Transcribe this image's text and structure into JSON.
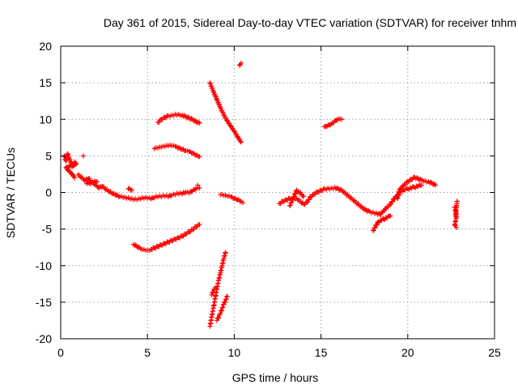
{
  "chart_data": {
    "type": "scatter",
    "title": "Day 361 of 2015, Sidereal Day-to-day VTEC variation (SDTVAR) for receiver tnhm",
    "xlabel": "GPS time / hours",
    "ylabel": "SDTVAR / TECUs",
    "xlim": [
      0,
      25
    ],
    "ylim": [
      -20,
      20
    ],
    "xticks": [
      0,
      5,
      10,
      15,
      20,
      25
    ],
    "yticks": [
      -20,
      -15,
      -10,
      -5,
      0,
      5,
      10,
      15,
      20
    ],
    "grid": true,
    "marker": "+",
    "color": "#ff0000",
    "series": [
      {
        "points": [
          [
            0.2,
            5.0
          ],
          [
            0.3,
            4.3
          ],
          [
            0.4,
            5.3
          ],
          [
            0.5,
            4.6
          ],
          [
            0.6,
            4.1
          ],
          [
            0.7,
            3.6
          ],
          [
            0.8,
            4.2
          ],
          [
            0.9,
            3.9
          ],
          [
            0.3,
            3.4
          ],
          [
            0.5,
            2.9
          ],
          [
            0.7,
            2.4
          ],
          [
            0.8,
            2.0
          ]
        ]
      },
      {
        "points": [
          [
            1.0,
            2.4
          ],
          [
            1.2,
            2.0
          ],
          [
            1.4,
            1.6
          ],
          [
            1.6,
            1.9
          ],
          [
            1.8,
            1.4
          ],
          [
            2.0,
            1.0
          ],
          [
            2.2,
            0.6
          ],
          [
            2.4,
            0.8
          ],
          [
            2.6,
            0.4
          ],
          [
            2.8,
            0.1
          ],
          [
            3.0,
            -0.2
          ],
          [
            3.2,
            -0.4
          ],
          [
            3.4,
            -0.6
          ],
          [
            3.6,
            -0.7
          ],
          [
            3.8,
            -0.8
          ],
          [
            4.0,
            -0.9
          ],
          [
            4.2,
            -1.0
          ],
          [
            4.4,
            -1.0
          ],
          [
            4.6,
            -0.9
          ],
          [
            4.8,
            -0.8
          ],
          [
            5.0,
            -0.8
          ],
          [
            5.2,
            -0.9
          ],
          [
            5.4,
            -0.7
          ],
          [
            5.6,
            -0.6
          ],
          [
            5.8,
            -0.6
          ],
          [
            6.0,
            -0.5
          ],
          [
            6.2,
            -0.6
          ],
          [
            6.4,
            -0.4
          ],
          [
            6.6,
            -0.3
          ],
          [
            6.8,
            -0.2
          ],
          [
            7.0,
            -0.2
          ],
          [
            7.2,
            0.0
          ],
          [
            7.4,
            -0.1
          ],
          [
            7.6,
            0.2
          ],
          [
            7.8,
            0.5
          ],
          [
            8.0,
            0.6
          ],
          [
            1.3,
            5.0
          ],
          [
            1.5,
            1.2
          ],
          [
            2.1,
            1.5
          ],
          [
            3.9,
            0.5
          ],
          [
            4.1,
            0.3
          ],
          [
            7.9,
            1.0
          ]
        ]
      },
      {
        "points": [
          [
            4.2,
            -7.1
          ],
          [
            4.4,
            -7.4
          ],
          [
            4.6,
            -7.7
          ],
          [
            4.8,
            -7.8
          ],
          [
            5.0,
            -7.9
          ],
          [
            5.2,
            -7.8
          ],
          [
            5.4,
            -7.6
          ],
          [
            5.6,
            -7.4
          ],
          [
            5.8,
            -7.2
          ],
          [
            6.0,
            -7.0
          ],
          [
            6.2,
            -6.8
          ],
          [
            6.4,
            -6.6
          ],
          [
            6.6,
            -6.4
          ],
          [
            6.8,
            -6.2
          ],
          [
            7.0,
            -6.0
          ],
          [
            7.2,
            -5.7
          ],
          [
            7.4,
            -5.4
          ],
          [
            7.6,
            -5.1
          ],
          [
            7.8,
            -4.7
          ],
          [
            8.0,
            -4.4
          ]
        ]
      },
      {
        "points": [
          [
            5.4,
            6.0
          ],
          [
            5.6,
            6.1
          ],
          [
            5.8,
            6.2
          ],
          [
            6.0,
            6.3
          ],
          [
            6.2,
            6.4
          ],
          [
            6.4,
            6.4
          ],
          [
            6.6,
            6.3
          ],
          [
            6.8,
            6.1
          ],
          [
            7.0,
            5.9
          ],
          [
            7.2,
            5.7
          ],
          [
            7.4,
            5.6
          ],
          [
            7.6,
            5.4
          ],
          [
            7.8,
            5.1
          ],
          [
            8.0,
            4.9
          ]
        ]
      },
      {
        "points": [
          [
            5.6,
            9.6
          ],
          [
            5.8,
            10.0
          ],
          [
            6.0,
            10.3
          ],
          [
            6.2,
            10.5
          ],
          [
            6.4,
            10.6
          ],
          [
            6.6,
            10.7
          ],
          [
            6.8,
            10.7
          ],
          [
            7.0,
            10.6
          ],
          [
            7.2,
            10.4
          ],
          [
            7.4,
            10.2
          ],
          [
            7.6,
            10.0
          ],
          [
            7.8,
            9.7
          ],
          [
            8.0,
            9.5
          ]
        ]
      },
      {
        "points": [
          [
            8.6,
            15.0
          ],
          [
            8.8,
            13.8
          ],
          [
            9.0,
            12.7
          ],
          [
            9.2,
            11.6
          ],
          [
            9.4,
            10.6
          ],
          [
            9.6,
            9.8
          ],
          [
            9.8,
            9.1
          ],
          [
            10.0,
            8.4
          ],
          [
            10.2,
            7.6
          ],
          [
            10.4,
            6.9
          ]
        ]
      },
      {
        "points": [
          [
            8.6,
            -18.3
          ],
          [
            8.7,
            -17.0
          ],
          [
            8.8,
            -15.8
          ],
          [
            8.9,
            -14.5
          ],
          [
            9.0,
            -13.2
          ],
          [
            9.1,
            -12.0
          ],
          [
            9.2,
            -11.0
          ],
          [
            9.3,
            -10.0
          ],
          [
            9.4,
            -9.0
          ],
          [
            9.5,
            -8.2
          ],
          [
            8.7,
            -14.0
          ],
          [
            8.9,
            -13.0
          ],
          [
            9.0,
            -17.5
          ],
          [
            9.2,
            -16.5
          ],
          [
            9.4,
            -15.3
          ],
          [
            9.6,
            -14.2
          ]
        ]
      },
      {
        "points": [
          [
            10.3,
            17.4
          ],
          [
            10.4,
            17.7
          ]
        ]
      },
      {
        "points": [
          [
            9.2,
            -0.3
          ],
          [
            9.4,
            -0.4
          ],
          [
            9.6,
            -0.5
          ],
          [
            9.8,
            -0.6
          ],
          [
            10.0,
            -0.8
          ],
          [
            10.2,
            -1.0
          ],
          [
            10.4,
            -1.2
          ],
          [
            10.5,
            -1.4
          ]
        ]
      },
      {
        "points": [
          [
            12.6,
            -1.5
          ],
          [
            12.8,
            -1.2
          ],
          [
            13.0,
            -1.0
          ],
          [
            13.2,
            -0.8
          ],
          [
            13.4,
            -0.7
          ],
          [
            13.6,
            -0.8
          ],
          [
            13.8,
            -1.2
          ],
          [
            14.0,
            -1.6
          ],
          [
            14.2,
            -1.3
          ],
          [
            14.4,
            -0.6
          ],
          [
            14.6,
            -0.2
          ],
          [
            14.8,
            0.1
          ],
          [
            15.0,
            0.3
          ],
          [
            15.2,
            0.5
          ],
          [
            15.4,
            0.6
          ],
          [
            15.6,
            0.6
          ],
          [
            15.8,
            0.7
          ],
          [
            16.0,
            0.5
          ],
          [
            16.2,
            0.3
          ],
          [
            16.4,
            -0.1
          ],
          [
            16.6,
            -0.5
          ],
          [
            16.8,
            -0.9
          ],
          [
            17.0,
            -1.3
          ],
          [
            17.2,
            -1.7
          ],
          [
            17.4,
            -2.1
          ],
          [
            17.6,
            -2.4
          ],
          [
            17.8,
            -2.6
          ],
          [
            18.0,
            -2.7
          ],
          [
            18.2,
            -2.8
          ],
          [
            18.4,
            -3.0
          ],
          [
            18.6,
            -2.5
          ],
          [
            18.8,
            -2.0
          ],
          [
            19.0,
            -1.6
          ],
          [
            19.2,
            -0.9
          ],
          [
            19.4,
            -0.3
          ],
          [
            19.6,
            0.6
          ],
          [
            19.8,
            1.1
          ],
          [
            20.0,
            1.5
          ],
          [
            20.2,
            1.8
          ],
          [
            20.4,
            2.1
          ],
          [
            20.6,
            1.9
          ],
          [
            20.8,
            1.7
          ],
          [
            21.0,
            1.6
          ],
          [
            21.2,
            1.5
          ],
          [
            21.4,
            1.3
          ],
          [
            21.6,
            1.0
          ],
          [
            13.2,
            -1.8
          ],
          [
            13.6,
            0.3
          ],
          [
            14.0,
            -0.5
          ],
          [
            18.0,
            -5.2
          ],
          [
            18.3,
            -4.0
          ],
          [
            19.0,
            -3.2
          ],
          [
            19.4,
            -0.8
          ],
          [
            19.6,
            0.2
          ],
          [
            20.0,
            0.5
          ],
          [
            20.8,
            1.0
          ]
        ]
      },
      {
        "points": [
          [
            15.2,
            9.0
          ],
          [
            15.4,
            9.2
          ],
          [
            15.6,
            9.4
          ],
          [
            15.8,
            9.8
          ],
          [
            16.0,
            10.1
          ],
          [
            16.2,
            10.0
          ]
        ]
      },
      {
        "points": [
          [
            22.7,
            -2.0
          ],
          [
            22.75,
            -2.5
          ],
          [
            22.8,
            -3.0
          ],
          [
            22.8,
            -3.5
          ],
          [
            22.75,
            -4.0
          ],
          [
            22.7,
            -4.5
          ],
          [
            22.8,
            -4.8
          ],
          [
            22.85,
            -1.2
          ],
          [
            22.75,
            -3.2
          ]
        ]
      }
    ]
  }
}
